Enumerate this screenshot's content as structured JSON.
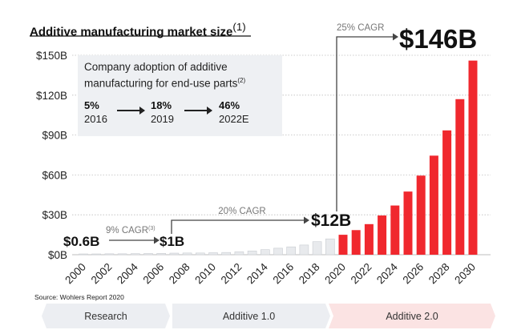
{
  "chart_title": "Additive manufacturing market size",
  "chart_title_note": "(1)",
  "source": "Source: Wohlers Report 2020",
  "inset": {
    "heading": "Company adoption of additive manufacturing for end-use parts",
    "heading_note": "(2)",
    "points": [
      {
        "value": "5%",
        "year": "2016"
      },
      {
        "value": "18%",
        "year": "2019"
      },
      {
        "value": "46%",
        "year": "2022E"
      }
    ]
  },
  "phases": [
    {
      "label": "Research",
      "color": "#eceef2"
    },
    {
      "label": "Additive 1.0",
      "color": "#eceef2"
    },
    {
      "label": "Additive 2.0",
      "color": "#fbe3e3"
    }
  ],
  "annotations": {
    "start_value": "$0.6B",
    "mid_value": "$1B",
    "cagr1": "9% CAGR",
    "cagr1_note": "(3)",
    "value_12": "$12B",
    "cagr2": "20% CAGR",
    "value_146": "$146B",
    "cagr3": "25% CAGR"
  },
  "colors": {
    "historical_bar": "#e8eaed",
    "historical_bar_edge": "#c9ccd1",
    "forecast_bar": "#f0282e",
    "gridline": "#bdbdbd",
    "arrow": "#444444"
  },
  "chart_data": {
    "type": "bar",
    "categories": [
      "2000",
      "2001",
      "2002",
      "2003",
      "2004",
      "2005",
      "2006",
      "2007",
      "2008",
      "2009",
      "2010",
      "2011",
      "2012",
      "2013",
      "2014",
      "2015",
      "2016",
      "2017",
      "2018",
      "2019",
      "2020",
      "2021",
      "2022",
      "2023",
      "2024",
      "2025",
      "2026",
      "2027",
      "2028",
      "2029",
      "2030"
    ],
    "values": [
      0.6,
      0.6,
      0.7,
      0.7,
      0.8,
      0.9,
      1.0,
      1.2,
      1.3,
      1.3,
      1.5,
      1.7,
      2.2,
      2.8,
      3.8,
      4.9,
      5.9,
      7.3,
      9.8,
      11.9,
      15.0,
      18.5,
      23.0,
      29.5,
      37.0,
      47.5,
      59.5,
      74.5,
      93.5,
      117.0,
      146.0
    ],
    "forecast_from": "2020",
    "x_tick_labels": [
      "2000",
      "2002",
      "2004",
      "2006",
      "2008",
      "2010",
      "2012",
      "2014",
      "2016",
      "2018",
      "2020",
      "2022",
      "2024",
      "2026",
      "2028",
      "2030"
    ],
    "y_tick_labels": [
      "$0B",
      "$30B",
      "$60B",
      "$90B",
      "$120B",
      "$150B"
    ],
    "ylim": [
      0,
      150
    ],
    "grid": true
  }
}
